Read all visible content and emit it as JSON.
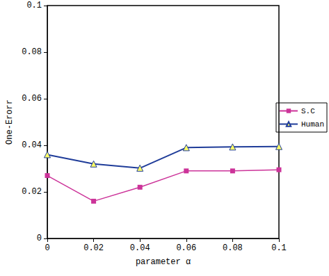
{
  "chart_data": {
    "type": "line",
    "x_label": "parameter α",
    "y_label": "One-Erorr",
    "x": [
      0,
      0.02,
      0.04,
      0.06,
      0.08,
      0.1
    ],
    "series": [
      {
        "name": "S.C",
        "color": "#cc3399",
        "marker": "square",
        "values": [
          0.027,
          0.016,
          0.022,
          0.029,
          0.029,
          0.0295
        ]
      },
      {
        "name": "Human",
        "color": "#1f3c99",
        "marker": "triangle",
        "values": [
          0.036,
          0.032,
          0.0302,
          0.039,
          0.0393,
          0.0395
        ]
      }
    ],
    "xlim": [
      0,
      0.1
    ],
    "xticks": [
      0,
      0.02,
      0.04,
      0.06,
      0.08,
      0.1
    ],
    "ylim": [
      0,
      0.1
    ],
    "yticks": [
      0,
      0.02,
      0.04,
      0.06,
      0.08,
      0.1
    ],
    "grid": false,
    "legend": "right"
  }
}
